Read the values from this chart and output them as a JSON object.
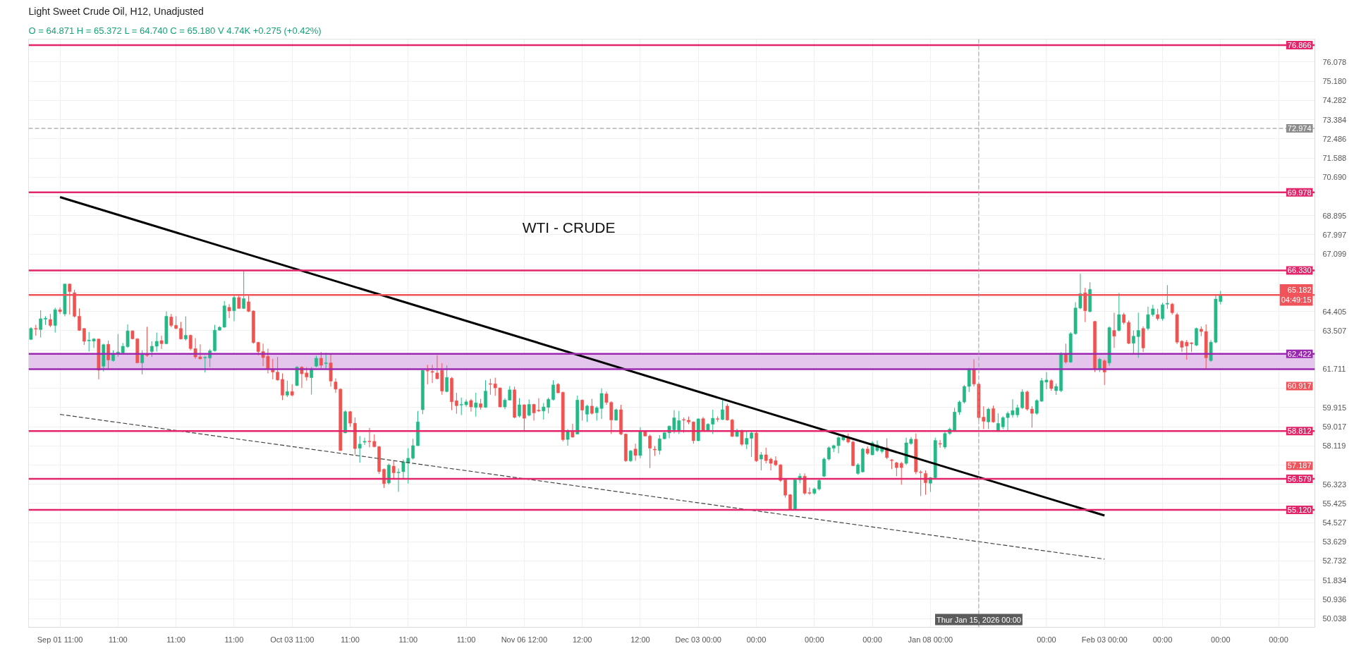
{
  "chart_data": {
    "type": "candlestick",
    "title": "Light Sweet Crude Oil, H12, Unadjusted",
    "subtitle": "O = 64.871  H = 65.372  L = 64.740  C = 65.180  V 4.74K  +0.275 (+0.42%)",
    "categories": [
      null,
      null,
      null,
      null,
      null,
      null,
      "Sep 01 11:00",
      null,
      null,
      null,
      null,
      null,
      null,
      null,
      null,
      null,
      null,
      null,
      "11:00",
      null,
      null,
      null,
      null,
      null,
      null,
      null,
      null,
      null,
      null,
      null,
      "11:00",
      null,
      null,
      null,
      null,
      null,
      null,
      null,
      null,
      null,
      null,
      null,
      "11:00",
      null,
      null,
      null,
      null,
      null,
      null,
      null,
      null,
      null,
      null,
      null,
      "Oct 03 11:00",
      null,
      null,
      null,
      null,
      null,
      null,
      null,
      null,
      null,
      null,
      null,
      "11:00",
      null,
      null,
      null,
      null,
      null,
      null,
      null,
      null,
      null,
      null,
      null,
      "11:00",
      null,
      null,
      null,
      null,
      null,
      null,
      null,
      null,
      null,
      null,
      null,
      "11:00",
      null,
      null,
      null,
      null,
      null,
      null,
      null,
      null,
      null,
      null,
      null,
      "Nov 06 12:00",
      null,
      null,
      null,
      null,
      null,
      null,
      null,
      null,
      null,
      null,
      null,
      "12:00",
      null,
      null,
      null,
      null,
      null,
      null,
      null,
      null,
      null,
      null,
      null,
      "12:00",
      null,
      null,
      null,
      null,
      null,
      null,
      null,
      null,
      null,
      null,
      null,
      "Dec 03 00:00",
      null,
      null,
      null,
      null,
      null,
      null,
      null,
      null,
      null,
      null,
      null,
      "00:00",
      null,
      null,
      null,
      null,
      null,
      null,
      null,
      null,
      null,
      null,
      null,
      "00:00",
      null,
      null,
      null,
      null,
      null,
      null,
      null,
      null,
      null,
      null,
      null,
      "00:00",
      null,
      null,
      null,
      null,
      null,
      null,
      null,
      null,
      null,
      null,
      null,
      "Jan 08 00:00",
      null,
      null,
      null,
      null,
      null,
      null,
      null,
      null,
      null,
      "Thur Jan 15, 2026 00:00",
      null,
      null,
      null,
      null,
      null,
      null,
      null,
      null,
      null,
      null,
      null,
      null,
      null,
      "00:00",
      null,
      null,
      null,
      null,
      null,
      null,
      null,
      null,
      null,
      null,
      null,
      "Feb 03 00:00",
      null,
      null,
      null,
      null,
      null,
      null,
      null,
      null,
      null,
      null,
      null,
      "00:00",
      null,
      null,
      null,
      null,
      null,
      null,
      null,
      null,
      null,
      null,
      null,
      "00:00",
      null,
      null,
      null,
      null,
      null,
      null,
      null,
      null,
      null,
      null,
      null,
      "00:00",
      null,
      null,
      null,
      null,
      null,
      null,
      null
    ],
    "ohlc": [
      [
        63.1,
        63.67,
        63.07,
        63.61
      ],
      [
        63.61,
        63.78,
        63.27,
        63.58
      ],
      [
        63.56,
        64.46,
        63.19,
        64.07
      ],
      [
        64.05,
        64.18,
        63.78,
        64.09
      ],
      [
        64.03,
        64.29,
        63.67,
        63.75
      ],
      [
        63.75,
        64.58,
        63.42,
        64.49
      ],
      [
        64.49,
        64.6,
        64.29,
        64.4
      ],
      [
        64.29,
        65.71,
        64.18,
        65.69
      ],
      [
        65.69,
        65.71,
        64.26,
        65.34
      ],
      [
        65.28,
        65.43,
        64.12,
        64.18
      ],
      [
        64.18,
        64.55,
        63.5,
        63.52
      ],
      [
        63.61,
        63.62,
        62.84,
        63.01
      ],
      [
        63.03,
        63.44,
        62.53,
        63.07
      ],
      [
        63.02,
        63.16,
        62.7,
        63.12
      ],
      [
        63.12,
        63.13,
        61.23,
        61.66
      ],
      [
        61.85,
        62.9,
        61.6,
        62.85
      ],
      [
        62.87,
        63.04,
        61.68,
        62.14
      ],
      [
        62.11,
        62.59,
        62.06,
        62.45
      ],
      [
        62.45,
        63.35,
        62.28,
        62.51
      ],
      [
        62.47,
        62.93,
        62.42,
        62.78
      ],
      [
        62.76,
        63.8,
        62.7,
        63.5
      ],
      [
        63.5,
        63.53,
        63.1,
        63.13
      ],
      [
        63.13,
        63.16,
        61.99,
        62.0
      ],
      [
        62.0,
        62.59,
        61.46,
        62.39
      ],
      [
        62.39,
        63.69,
        62.28,
        62.35
      ],
      [
        62.53,
        63.01,
        62.28,
        62.78
      ],
      [
        62.78,
        63.42,
        62.53,
        63.01
      ],
      [
        63.04,
        63.27,
        62.65,
        62.9
      ],
      [
        62.9,
        64.41,
        62.87,
        64.18
      ],
      [
        64.15,
        64.29,
        63.67,
        63.75
      ],
      [
        63.76,
        64.18,
        63.58,
        63.61
      ],
      [
        63.61,
        63.92,
        63.1,
        63.12
      ],
      [
        63.12,
        64.18,
        63.04,
        63.29
      ],
      [
        63.29,
        63.33,
        62.59,
        62.67
      ],
      [
        62.67,
        63.16,
        62.19,
        62.28
      ],
      [
        62.28,
        62.87,
        62.17,
        62.19
      ],
      [
        62.23,
        62.33,
        61.55,
        62.26
      ],
      [
        62.23,
        62.65,
        61.8,
        62.57
      ],
      [
        62.57,
        63.78,
        62.53,
        63.53
      ],
      [
        63.53,
        63.72,
        63.52,
        63.67
      ],
      [
        63.67,
        64.89,
        63.65,
        64.67
      ],
      [
        64.6,
        64.75,
        64.1,
        64.43
      ],
      [
        64.44,
        65.17,
        63.95,
        65.06
      ],
      [
        65.06,
        65.17,
        64.53,
        64.55
      ],
      [
        64.55,
        66.3,
        64.52,
        65.01
      ],
      [
        64.86,
        65.14,
        64.38,
        64.41
      ],
      [
        64.43,
        64.46,
        62.9,
        62.95
      ],
      [
        62.96,
        62.99,
        62.36,
        62.53
      ],
      [
        62.53,
        62.9,
        61.85,
        62.25
      ],
      [
        62.31,
        62.67,
        61.51,
        61.72
      ],
      [
        61.72,
        62.19,
        61.23,
        61.57
      ],
      [
        61.57,
        62.28,
        61.17,
        61.2
      ],
      [
        61.23,
        61.51,
        60.26,
        60.49
      ],
      [
        60.49,
        61.17,
        60.4,
        60.66
      ],
      [
        60.66,
        61.0,
        60.43,
        60.49
      ],
      [
        60.94,
        61.85,
        60.92,
        61.8
      ],
      [
        61.8,
        61.85,
        60.83,
        61.49
      ],
      [
        61.53,
        61.8,
        61.17,
        61.34
      ],
      [
        61.31,
        61.8,
        60.52,
        61.72
      ],
      [
        61.85,
        62.33,
        61.8,
        62.22
      ],
      [
        62.22,
        62.51,
        61.76,
        61.89
      ],
      [
        61.97,
        62.48,
        61.74,
        62.0
      ],
      [
        62.0,
        62.4,
        60.89,
        61.15
      ],
      [
        61.11,
        61.28,
        60.6,
        60.77
      ],
      [
        60.77,
        60.81,
        57.88,
        57.9
      ],
      [
        58.73,
        59.79,
        58.7,
        59.72
      ],
      [
        59.72,
        59.75,
        59.01,
        59.18
      ],
      [
        59.18,
        59.45,
        57.71,
        57.99
      ],
      [
        58.01,
        58.58,
        57.33,
        58.2
      ],
      [
        58.29,
        58.5,
        58.16,
        58.33
      ],
      [
        58.34,
        58.96,
        58.05,
        58.31
      ],
      [
        58.33,
        58.65,
        58.05,
        58.08
      ],
      [
        58.08,
        58.11,
        56.8,
        56.91
      ],
      [
        57.02,
        57.06,
        56.15,
        56.35
      ],
      [
        56.38,
        57.29,
        56.31,
        57.22
      ],
      [
        57.17,
        57.42,
        56.57,
        56.86
      ],
      [
        56.86,
        57.06,
        55.97,
        56.89
      ],
      [
        56.91,
        57.48,
        56.57,
        57.37
      ],
      [
        57.33,
        58.01,
        56.35,
        57.54
      ],
      [
        57.54,
        58.45,
        57.48,
        58.13
      ],
      [
        58.13,
        59.75,
        58.11,
        59.24
      ],
      [
        59.81,
        61.68,
        59.6,
        61.65
      ],
      [
        61.65,
        61.91,
        61.0,
        61.62
      ],
      [
        61.6,
        61.91,
        61.06,
        61.56
      ],
      [
        61.53,
        62.36,
        61.23,
        61.26
      ],
      [
        61.65,
        61.99,
        60.51,
        60.68
      ],
      [
        60.66,
        61.88,
        60.63,
        61.32
      ],
      [
        61.28,
        61.34,
        59.79,
        60.18
      ],
      [
        60.23,
        60.6,
        59.62,
        60.0
      ],
      [
        60.03,
        60.38,
        59.56,
        60.06
      ],
      [
        60.04,
        60.29,
        59.95,
        60.18
      ],
      [
        60.24,
        60.32,
        59.72,
        59.94
      ],
      [
        59.92,
        60.6,
        59.49,
        60.13
      ],
      [
        60.09,
        60.32,
        59.81,
        59.92
      ],
      [
        59.92,
        61.19,
        59.9,
        60.68
      ],
      [
        61.03,
        61.26,
        60.51,
        61.0
      ],
      [
        61.02,
        61.31,
        60.46,
        60.83
      ],
      [
        60.83,
        60.85,
        59.92,
        59.94
      ],
      [
        59.94,
        60.35,
        59.83,
        60.26
      ],
      [
        60.26,
        60.92,
        60.24,
        60.74
      ],
      [
        60.74,
        60.89,
        59.41,
        59.45
      ],
      [
        59.52,
        60.35,
        59.45,
        60.04
      ],
      [
        60.04,
        60.06,
        58.79,
        59.41
      ],
      [
        59.55,
        60.29,
        59.5,
        60.06
      ],
      [
        60.06,
        60.09,
        59.3,
        59.66
      ],
      [
        59.79,
        60.35,
        59.7,
        59.75
      ],
      [
        59.75,
        60.13,
        59.35,
        59.94
      ],
      [
        59.92,
        60.38,
        59.64,
        60.3
      ],
      [
        60.29,
        61.19,
        60.24,
        60.97
      ],
      [
        61.0,
        61.06,
        60.58,
        60.6
      ],
      [
        60.62,
        60.66,
        58.33,
        58.41
      ],
      [
        58.42,
        58.9,
        58.13,
        58.79
      ],
      [
        58.77,
        59.15,
        58.5,
        58.53
      ],
      [
        58.67,
        60.47,
        58.65,
        60.26
      ],
      [
        60.26,
        60.29,
        59.3,
        59.79
      ],
      [
        59.6,
        60.04,
        59.24,
        59.98
      ],
      [
        59.98,
        60.32,
        59.58,
        59.64
      ],
      [
        59.67,
        59.98,
        59.3,
        59.9
      ],
      [
        59.87,
        60.81,
        59.38,
        60.57
      ],
      [
        60.55,
        60.66,
        60.04,
        60.15
      ],
      [
        60.15,
        60.21,
        58.67,
        59.33
      ],
      [
        59.32,
        59.86,
        59.3,
        59.81
      ],
      [
        59.81,
        60.04,
        58.62,
        58.67
      ],
      [
        58.67,
        58.7,
        57.37,
        57.42
      ],
      [
        57.42,
        57.93,
        57.37,
        57.88
      ],
      [
        57.97,
        58.22,
        57.42,
        57.67
      ],
      [
        57.67,
        58.99,
        57.54,
        58.81
      ],
      [
        58.81,
        58.84,
        58.56,
        58.58
      ],
      [
        58.58,
        58.65,
        57.08,
        58.01
      ],
      [
        57.96,
        58.11,
        57.65,
        57.93
      ],
      [
        57.9,
        58.62,
        57.71,
        58.45
      ],
      [
        58.45,
        58.76,
        58.42,
        58.73
      ],
      [
        58.73,
        59.07,
        58.47,
        59.04
      ],
      [
        58.87,
        59.79,
        58.7,
        59.43
      ],
      [
        58.84,
        59.75,
        58.67,
        59.3
      ],
      [
        59.35,
        59.45,
        58.73,
        59.32
      ],
      [
        59.32,
        59.49,
        59.13,
        59.24
      ],
      [
        59.24,
        59.26,
        58.22,
        58.36
      ],
      [
        58.36,
        59.41,
        58.33,
        59.38
      ],
      [
        59.39,
        59.47,
        58.79,
        58.84
      ],
      [
        58.84,
        59.18,
        58.79,
        59.13
      ],
      [
        59.13,
        59.81,
        58.67,
        59.41
      ],
      [
        59.39,
        59.5,
        59.24,
        59.36
      ],
      [
        59.35,
        60.26,
        59.33,
        59.81
      ],
      [
        59.98,
        60.09,
        59.3,
        59.33
      ],
      [
        59.33,
        59.38,
        58.54,
        58.56
      ],
      [
        58.56,
        58.92,
        58.54,
        58.84
      ],
      [
        58.84,
        58.88,
        58.11,
        58.19
      ],
      [
        58.19,
        58.79,
        57.97,
        58.47
      ],
      [
        58.47,
        58.79,
        57.6,
        58.72
      ],
      [
        58.72,
        58.79,
        57.37,
        57.42
      ],
      [
        57.5,
        57.83,
        56.97,
        57.7
      ],
      [
        57.7,
        58.03,
        57.3,
        57.43
      ],
      [
        57.5,
        57.57,
        56.97,
        57.3
      ],
      [
        57.43,
        57.63,
        57.17,
        57.23
      ],
      [
        57.23,
        57.27,
        56.43,
        56.5
      ],
      [
        56.53,
        56.57,
        55.7,
        55.81
      ],
      [
        55.83,
        55.86,
        55.12,
        55.16
      ],
      [
        55.16,
        56.57,
        55.13,
        56.53
      ],
      [
        56.53,
        56.83,
        56.37,
        56.7
      ],
      [
        56.7,
        56.83,
        55.83,
        55.9
      ],
      [
        55.93,
        56.17,
        55.83,
        55.9
      ],
      [
        55.9,
        56.17,
        55.83,
        56.1
      ],
      [
        56.1,
        56.57,
        56.03,
        56.5
      ],
      [
        56.7,
        57.57,
        56.66,
        57.5
      ],
      [
        57.5,
        58.1,
        57.43,
        58.03
      ],
      [
        58.01,
        58.17,
        57.83,
        58.13
      ],
      [
        58.13,
        58.57,
        57.77,
        58.5
      ],
      [
        58.4,
        58.66,
        58.34,
        58.57
      ],
      [
        58.53,
        58.7,
        58.24,
        58.3
      ],
      [
        58.3,
        58.37,
        57.17,
        57.19
      ],
      [
        56.83,
        57.3,
        56.77,
        57.23
      ],
      [
        56.9,
        58.03,
        56.87,
        57.97
      ],
      [
        57.97,
        58.1,
        57.7,
        57.77
      ],
      [
        57.7,
        58.34,
        57.67,
        58.26
      ],
      [
        57.9,
        58.37,
        57.83,
        58.17
      ],
      [
        57.86,
        58.1,
        57.77,
        58.03
      ],
      [
        58.03,
        58.47,
        57.5,
        57.57
      ],
      [
        57.46,
        57.5,
        57.03,
        57.43
      ],
      [
        57.33,
        57.37,
        56.7,
        57.1
      ],
      [
        57.3,
        57.37,
        56.3,
        57.1
      ],
      [
        57.3,
        58.5,
        57.23,
        58.26
      ],
      [
        58.23,
        58.53,
        58.17,
        58.43
      ],
      [
        58.43,
        58.7,
        56.79,
        56.9
      ],
      [
        56.9,
        56.97,
        55.77,
        56.87
      ],
      [
        56.83,
        56.97,
        55.83,
        56.39
      ],
      [
        56.37,
        56.66,
        55.97,
        56.63
      ],
      [
        56.63,
        58.5,
        56.61,
        58.37
      ],
      [
        58.23,
        58.4,
        58.03,
        58.2
      ],
      [
        58.06,
        58.79,
        57.97,
        58.7
      ],
      [
        58.7,
        58.97,
        58.63,
        58.9
      ],
      [
        58.83,
        59.9,
        58.77,
        59.7
      ],
      [
        59.7,
        60.24,
        59.57,
        60.17
      ],
      [
        60.17,
        60.97,
        60.1,
        60.9
      ],
      [
        60.9,
        61.77,
        60.64,
        61.7
      ],
      [
        61.7,
        62.17,
        60.9,
        61.01
      ],
      [
        61.01,
        61.04,
        59.33,
        59.44
      ],
      [
        59.46,
        59.97,
        58.9,
        59.27
      ],
      [
        59.24,
        59.9,
        58.9,
        59.84
      ],
      [
        59.86,
        60.0,
        59.2,
        59.24
      ],
      [
        58.83,
        59.64,
        58.77,
        59.17
      ],
      [
        59.01,
        59.5,
        58.9,
        59.44
      ],
      [
        59.44,
        59.73,
        58.83,
        59.64
      ],
      [
        59.57,
        60.3,
        59.44,
        59.77
      ],
      [
        59.57,
        60.04,
        59.44,
        59.9
      ],
      [
        59.9,
        60.77,
        59.84,
        60.64
      ],
      [
        60.64,
        60.7,
        59.77,
        59.84
      ],
      [
        59.84,
        59.97,
        58.97,
        59.64
      ],
      [
        59.64,
        60.3,
        59.57,
        60.24
      ],
      [
        60.21,
        61.3,
        60.17,
        61.17
      ],
      [
        61.1,
        61.57,
        60.77,
        61.2
      ],
      [
        61.17,
        61.24,
        60.7,
        60.8
      ],
      [
        60.7,
        61.04,
        60.5,
        60.9
      ],
      [
        60.7,
        62.5,
        60.64,
        62.44
      ],
      [
        62.44,
        62.9,
        61.97,
        62.04
      ],
      [
        62.04,
        63.44,
        62.0,
        63.37
      ],
      [
        63.37,
        64.84,
        63.31,
        64.57
      ],
      [
        64.57,
        66.17,
        64.51,
        65.24
      ],
      [
        65.28,
        65.51,
        63.91,
        64.44
      ],
      [
        64.4,
        65.77,
        64.37,
        65.44
      ],
      [
        63.94,
        63.97,
        61.57,
        61.7
      ],
      [
        61.7,
        62.24,
        61.57,
        62.17
      ],
      [
        62.1,
        62.17,
        60.97,
        61.57
      ],
      [
        62.0,
        63.71,
        61.87,
        63.65
      ],
      [
        63.52,
        64.35,
        62.7,
        63.25
      ],
      [
        63.52,
        65.27,
        63.47,
        64.26
      ],
      [
        64.26,
        64.35,
        63.8,
        63.89
      ],
      [
        63.89,
        63.98,
        62.88,
        62.92
      ],
      [
        62.92,
        63.52,
        62.42,
        63.25
      ],
      [
        63.23,
        64.35,
        62.24,
        63.52
      ],
      [
        63.61,
        63.71,
        62.51,
        62.7
      ],
      [
        63.61,
        64.63,
        63.52,
        64.26
      ],
      [
        64.26,
        64.72,
        64.17,
        64.53
      ],
      [
        64.26,
        64.53,
        63.98,
        64.07
      ],
      [
        64.07,
        64.81,
        63.98,
        64.72
      ],
      [
        64.75,
        65.64,
        64.53,
        64.79
      ],
      [
        64.75,
        64.81,
        64.26,
        64.35
      ],
      [
        64.26,
        64.35,
        62.88,
        62.97
      ],
      [
        63.01,
        63.07,
        62.51,
        62.73
      ],
      [
        62.97,
        63.07,
        62.15,
        62.79
      ],
      [
        62.94,
        62.97,
        62.51,
        62.9
      ],
      [
        62.83,
        63.65,
        62.79,
        63.61
      ],
      [
        63.58,
        63.71,
        63.25,
        63.47
      ],
      [
        63.47,
        63.8,
        61.69,
        62.24
      ],
      [
        62.11,
        63.07,
        62.05,
        62.97
      ],
      [
        62.97,
        65.18,
        62.92,
        64.99
      ],
      [
        64.87,
        65.37,
        64.74,
        65.18
      ],
      null,
      null,
      null,
      null,
      null,
      null,
      null,
      null,
      null,
      null,
      null,
      null,
      null,
      null,
      null,
      null,
      null,
      null,
      null
    ],
    "colors": [
      "#23b886",
      "#ef5350",
      "#23b886",
      "#23b886",
      "#ef5350",
      "#23b886",
      "#ef5350",
      "#23b886",
      "#ef5350",
      "#ef5350",
      "#ef5350",
      "#ef5350",
      "#23b886",
      "#23b886",
      "#ef5350",
      "#23b886",
      "#ef5350",
      "#23b886",
      "#23b886",
      "#23b886",
      "#23b886",
      "#ef5350",
      "#ef5350",
      "#23b886",
      "#ef5350",
      "#23b886",
      "#23b886",
      "#ef5350",
      "#23b886",
      "#ef5350",
      "#ef5350",
      "#ef5350",
      "#23b886",
      "#ef5350",
      "#ef5350",
      "#ef5350",
      "#23b886",
      "#23b886",
      "#23b886",
      "#23b886",
      "#23b886",
      "#ef5350",
      "#23b886",
      "#ef5350",
      "#23b886",
      "#ef5350",
      "#ef5350",
      "#ef5350",
      "#ef5350",
      "#ef5350",
      "#ef5350",
      "#ef5350",
      "#ef5350",
      "#23b886",
      "#ef5350",
      "#23b886",
      "#ef5350",
      "#ef5350",
      "#23b886",
      "#23b886",
      "#ef5350",
      "#23b886",
      "#ef5350",
      "#ef5350",
      "#ef5350",
      "#23b886",
      "#ef5350",
      "#ef5350",
      "#23b886",
      "#23b886",
      "#ef5350",
      "#ef5350",
      "#ef5350",
      "#ef5350",
      "#23b886",
      "#ef5350",
      "#23b886",
      "#23b886",
      "#23b886",
      "#23b886",
      "#23b886",
      "#23b886",
      "#ef5350",
      "#ef5350",
      "#ef5350",
      "#ef5350",
      "#23b886",
      "#ef5350",
      "#ef5350",
      "#23b886",
      "#23b886",
      "#ef5350",
      "#23b886",
      "#ef5350",
      "#23b886",
      "#ef5350",
      "#ef5350",
      "#ef5350",
      "#23b886",
      "#23b886",
      "#ef5350",
      "#23b886",
      "#ef5350",
      "#23b886",
      "#ef5350",
      "#ef5350",
      "#23b886",
      "#23b886",
      "#23b886",
      "#ef5350",
      "#ef5350",
      "#23b886",
      "#ef5350",
      "#23b886",
      "#ef5350",
      "#23b886",
      "#ef5350",
      "#23b886",
      "#23b886",
      "#ef5350",
      "#ef5350",
      "#23b886",
      "#ef5350",
      "#ef5350",
      "#23b886",
      "#ef5350",
      "#23b886",
      "#ef5350",
      "#ef5350",
      "#ef5350",
      "#23b886",
      "#23b886",
      "#23b886",
      "#23b886",
      "#23b886",
      "#ef5350",
      "#ef5350",
      "#ef5350",
      "#23b886",
      "#ef5350",
      "#23b886",
      "#23b886",
      "#ef5350",
      "#23b886",
      "#ef5350",
      "#ef5350",
      "#23b886",
      "#ef5350",
      "#23b886",
      "#23b886",
      "#ef5350",
      "#23b886",
      "#ef5350",
      "#ef5350",
      "#ef5350",
      "#ef5350",
      "#ef5350",
      "#ef5350",
      "#23b886",
      "#23b886",
      "#ef5350",
      "#ef5350",
      "#23b886",
      "#23b886",
      "#23b886",
      "#23b886",
      "#23b886",
      "#23b886",
      "#23b886",
      "#ef5350",
      "#ef5350",
      "#23b886",
      "#23b886",
      "#ef5350",
      "#23b886",
      "#23b886",
      "#23b886",
      "#ef5350",
      "#ef5350",
      "#ef5350",
      "#ef5350",
      "#23b886",
      "#23b886",
      "#ef5350",
      "#ef5350",
      "#ef5350",
      "#23b886",
      "#23b886",
      "#ef5350",
      "#23b886",
      "#23b886",
      "#23b886",
      "#23b886",
      "#23b886",
      "#23b886",
      "#ef5350",
      "#ef5350",
      "#ef5350",
      "#23b886",
      "#ef5350",
      "#23b886",
      "#23b886",
      "#23b886",
      "#23b886",
      "#23b886",
      "#23b886",
      "#ef5350",
      "#ef5350",
      "#23b886",
      "#23b886",
      "#23b886",
      "#ef5350",
      "#23b886",
      "#23b886",
      "#ef5350",
      "#23b886",
      "#23b886",
      "#23b886",
      "#ef5350",
      "#23b886",
      "#ef5350",
      "#23b886",
      "#ef5350",
      "#23b886",
      "#ef5350",
      "#23b886",
      "#ef5350",
      "#ef5350",
      "#23b886",
      "#23b886",
      "#ef5350",
      "#23b886",
      "#23b886",
      "#ef5350",
      "#23b886",
      "#23b886",
      "#ef5350",
      "#ef5350",
      "#ef5350",
      "#ef5350",
      "#ef5350",
      "#23b886",
      "#ef5350",
      "#ef5350",
      "#23b886",
      "#23b886",
      "#23b886",
      null,
      null,
      null,
      null,
      null,
      null,
      null,
      null,
      null,
      null,
      null,
      null,
      null,
      null,
      null,
      null,
      null,
      null,
      null
    ],
    "series": [
      {
        "type": "line",
        "x": [
          "Sep 01 11:00",
          "Feb 03 00:00"
        ],
        "values": [
          69.76,
          54.86
        ],
        "color": "#000000"
      },
      {
        "type": "line",
        "x": [
          "Sep 01 11:00",
          "Feb 03 00:00"
        ],
        "values": [
          59.59,
          52.82
        ],
        "color": "#444444",
        "line_style": "dashed"
      }
    ],
    "ylim": [
      49.63,
      77.15
    ],
    "yticks": [
      50.038,
      50.936,
      51.834,
      52.732,
      53.629,
      54.527,
      55.425,
      56.323,
      {
        "value": 57.221,
        "label": null
      },
      58.119,
      59.017,
      59.915,
      {
        "value": 60.813,
        "label": null
      },
      61.711,
      {
        "value": 62.609,
        "label": null
      },
      63.507,
      64.405,
      {
        "value": 65.303,
        "label": null
      },
      {
        "value": 66.201,
        "label": null
      },
      67.099,
      67.997,
      68.895,
      {
        "value": 69.792,
        "label": null
      },
      {
        "value": 70.69,
        "label": "70.690"
      },
      71.588,
      72.486,
      73.384,
      74.282,
      {
        "value": 75.18,
        "label": "75.180"
      },
      76.078
    ],
    "grid": true,
    "ref_lines": [
      {
        "axis": "y",
        "value": 76.866,
        "label": "76.866",
        "color": "#e3266b"
      },
      {
        "axis": "y",
        "value": 72.974,
        "label": "72.974",
        "color": "#8c8c8c",
        "line_style": "dashed"
      },
      {
        "axis": "y",
        "value": 69.978,
        "label": "69.978",
        "color": "#e3266b"
      },
      {
        "axis": "y",
        "value": 66.33,
        "label": "66.330",
        "color": "#e3266b"
      },
      {
        "axis": "y",
        "value": 65.182,
        "label": "65.182\n04:49:15",
        "color": "#f0545a"
      },
      {
        "axis": "y",
        "value": 62.422,
        "label": "62.422",
        "color": "#9c27b0"
      },
      {
        "axis": "y",
        "value": 61.711,
        "color": "#9c27b0"
      },
      {
        "axis": "y",
        "value": 58.812,
        "label": "58.812",
        "color": "#e3266b"
      },
      {
        "axis": "y",
        "value": 56.579,
        "label": "56.579",
        "color": "#e3266b"
      },
      {
        "axis": "y",
        "value": 55.12,
        "label": "55.120",
        "color": "#e3266b"
      },
      {
        "axis": "x",
        "value": "Thur Jan 15, 2026 00:00",
        "color": "#9e9e9e",
        "line_style": "dashed"
      }
    ],
    "bands": [
      {
        "axis": "y",
        "from": 61.711,
        "to": 62.422,
        "color": "#e4c6ec"
      }
    ],
    "annotations": [
      "WTI - CRUDE",
      {
        "text": "60.917",
        "y": 60.917
      },
      {
        "text": "57.187",
        "y": 57.187
      }
    ]
  }
}
